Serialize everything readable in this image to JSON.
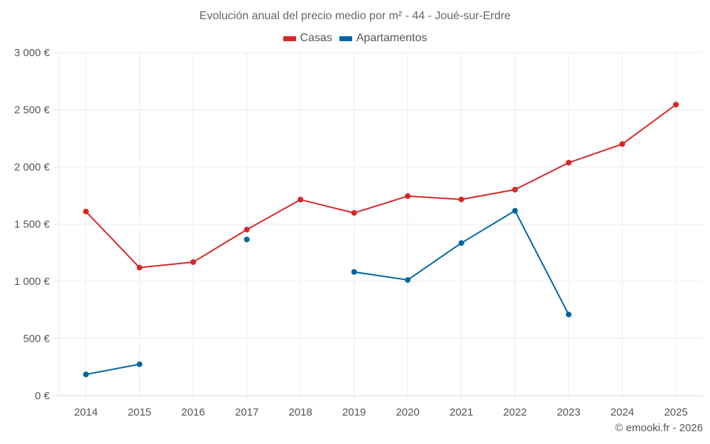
{
  "chart_data": {
    "type": "line",
    "title": "Evolución anual del precio medio por m² - 44 - Joué-sur-Erdre",
    "xlabel": "",
    "ylabel": "",
    "x": [
      2014,
      2015,
      2016,
      2017,
      2018,
      2019,
      2020,
      2021,
      2022,
      2023,
      2024,
      2025
    ],
    "x_tick_labels": [
      "2014",
      "2015",
      "2016",
      "2017",
      "2018",
      "2019",
      "2020",
      "2021",
      "2022",
      "2023",
      "2024",
      "2025"
    ],
    "ylim": [
      0,
      3000
    ],
    "y_ticks": [
      0,
      500,
      1000,
      1500,
      2000,
      2500,
      3000
    ],
    "y_tick_labels": [
      "0 €",
      "500 €",
      "1 000 €",
      "1 500 €",
      "2 000 €",
      "2 500 €",
      "3 000 €"
    ],
    "grid": true,
    "legend_position": "top-center",
    "series": [
      {
        "name": "Casas",
        "color": "#d62728",
        "values": [
          1610,
          1120,
          1168,
          1452,
          1714,
          1598,
          1745,
          1716,
          1802,
          2037,
          2200,
          2545
        ]
      },
      {
        "name": "Apartamentos",
        "color": "#0066a0",
        "values": [
          186,
          275,
          null,
          1366,
          null,
          1082,
          1012,
          1335,
          1617,
          710,
          null,
          null
        ]
      }
    ]
  },
  "credit": "© emooki.fr - 2026"
}
